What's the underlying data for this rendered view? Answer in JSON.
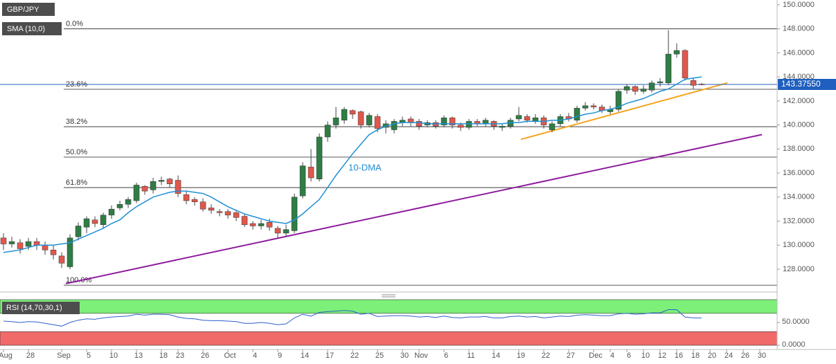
{
  "chart_data": {
    "type": "candlestick",
    "title": "GBP/JPY",
    "categories": [
      "Aug",
      null,
      null,
      "28",
      null,
      null,
      null,
      "Sep",
      null,
      null,
      "5",
      null,
      null,
      "10",
      null,
      null,
      "13",
      null,
      null,
      "18",
      null,
      "23",
      null,
      null,
      "26",
      null,
      null,
      "Oct",
      null,
      null,
      "4",
      null,
      null,
      "9",
      null,
      null,
      "14",
      null,
      null,
      "17",
      null,
      null,
      "22",
      null,
      null,
      "25",
      null,
      null,
      "30",
      null,
      "Nov",
      null,
      null,
      "6",
      null,
      null,
      "11",
      null,
      null,
      "14",
      null,
      null,
      "19",
      null,
      null,
      "22",
      null,
      null,
      "27",
      null,
      null,
      "Dec",
      null,
      "4",
      null,
      "6",
      null,
      "10",
      null,
      "12",
      null,
      "16",
      null,
      "18",
      null,
      "20",
      null,
      "24",
      null,
      "26",
      null,
      "30"
    ],
    "open": [
      130.6,
      130.1,
      130.2,
      129.9,
      130.3,
      130.0,
      129.6,
      129.1,
      128.2,
      130.7,
      131.5,
      132.1,
      131.7,
      132.5,
      133.1,
      133.4,
      133.7,
      134.9,
      134.6,
      135.3,
      135.5,
      135.4,
      134.2,
      133.8,
      133.6,
      133.1,
      132.8,
      132.8,
      132.7,
      132.4,
      131.8,
      131.6,
      131.9,
      131.4,
      131.0,
      131.2,
      134.1,
      136.5,
      135.5,
      139.0,
      140.0,
      140.4,
      141.2,
      141.1,
      140.0,
      140.7,
      139.8,
      139.6,
      140.2,
      140.5,
      140.3,
      140.0,
      140.2,
      140.0,
      140.6,
      140.0,
      139.8,
      140.3,
      140.1,
      140.3,
      139.8,
      139.9,
      140.5,
      140.7,
      140.3,
      140.6,
      139.6,
      140.1,
      140.7,
      140.4,
      141.4,
      141.6,
      141.5,
      141.1,
      141.3,
      142.9,
      143.2,
      142.8,
      142.9,
      143.5,
      143.5,
      145.9,
      146.2,
      143.7,
      143.4,
      null,
      null,
      null,
      null,
      null,
      null,
      null
    ],
    "high": [
      131.0,
      130.7,
      130.5,
      130.6,
      130.6,
      130.3,
      130.0,
      129.4,
      130.9,
      131.9,
      132.4,
      132.4,
      132.7,
      133.3,
      133.7,
      134.0,
      135.2,
      135.0,
      135.6,
      135.7,
      135.6,
      135.8,
      134.5,
      134.0,
      133.9,
      133.4,
      133.0,
      133.0,
      132.9,
      132.6,
      132.0,
      132.1,
      132.2,
      131.6,
      131.7,
      134.3,
      136.9,
      138.0,
      139.3,
      140.3,
      141.5,
      141.5,
      141.3,
      141.2,
      141.0,
      140.9,
      140.4,
      140.5,
      140.7,
      140.7,
      140.5,
      140.4,
      140.4,
      140.8,
      140.7,
      140.2,
      140.5,
      140.5,
      140.6,
      140.4,
      140.1,
      140.6,
      141.5,
      140.9,
      140.9,
      140.8,
      140.3,
      140.9,
      141.0,
      141.6,
      141.9,
      141.8,
      141.7,
      141.6,
      143.0,
      143.4,
      143.3,
      143.3,
      143.7,
      143.9,
      147.9,
      146.8,
      146.3,
      143.9,
      143.5,
      null,
      null,
      null,
      null,
      null,
      null,
      null
    ],
    "low": [
      129.6,
      129.8,
      129.3,
      129.6,
      129.6,
      129.2,
      128.8,
      128.1,
      128.0,
      130.4,
      131.0,
      131.5,
      131.4,
      132.2,
      132.9,
      133.1,
      133.5,
      134.2,
      134.3,
      135.0,
      134.8,
      134.0,
      133.4,
      133.3,
      132.8,
      132.6,
      132.4,
      132.2,
      132.0,
      131.5,
      131.3,
      131.3,
      131.2,
      130.6,
      130.7,
      131.0,
      133.9,
      135.3,
      135.3,
      138.6,
      139.7,
      140.1,
      140.5,
      139.7,
      139.8,
      139.4,
      139.3,
      139.3,
      139.9,
      139.9,
      139.6,
      139.8,
      139.7,
      139.8,
      139.7,
      139.5,
      139.6,
      139.9,
      139.9,
      139.6,
      139.5,
      139.7,
      140.3,
      140.2,
      140.1,
      139.7,
      139.4,
      139.9,
      140.3,
      140.2,
      141.2,
      141.3,
      141.0,
      140.9,
      141.1,
      142.6,
      142.5,
      142.6,
      142.7,
      143.2,
      143.3,
      145.6,
      143.7,
      143.0,
      143.3,
      null,
      null,
      null,
      null,
      null,
      null,
      null
    ],
    "close": [
      130.1,
      130.3,
      129.7,
      130.3,
      130.0,
      129.6,
      129.2,
      128.5,
      130.6,
      131.6,
      132.2,
      131.8,
      132.5,
      133.0,
      133.4,
      133.8,
      135.0,
      134.5,
      135.3,
      135.4,
      135.1,
      134.3,
      133.7,
      133.6,
      133.0,
      132.9,
      132.7,
      132.5,
      132.3,
      131.7,
      131.6,
      131.8,
      131.5,
      131.0,
      131.3,
      134.0,
      136.6,
      135.6,
      139.0,
      140.0,
      140.6,
      141.3,
      140.9,
      140.0,
      140.8,
      139.7,
      140.1,
      140.3,
      140.4,
      140.2,
      139.9,
      140.2,
      139.9,
      140.6,
      140.0,
      139.8,
      140.3,
      140.1,
      140.4,
      139.9,
      139.9,
      140.4,
      140.8,
      140.4,
      140.6,
      140.0,
      140.1,
      140.7,
      140.5,
      141.4,
      141.6,
      141.5,
      141.2,
      141.3,
      142.8,
      143.2,
      142.8,
      143.0,
      143.5,
      143.6,
      145.9,
      146.2,
      143.9,
      143.3,
      143.38,
      null,
      null,
      null,
      null,
      null,
      null,
      null
    ],
    "up_color": "#2f7d45",
    "down_color": "#e0584c",
    "series": [
      {
        "name": "SMA (10,0)",
        "color": "#1e8fd5",
        "values": [
          129.4,
          129.5,
          129.6,
          129.8,
          130.0,
          130.0,
          130.0,
          130.1,
          130.2,
          130.5,
          130.8,
          131.1,
          131.4,
          131.8,
          132.1,
          132.7,
          133.2,
          133.6,
          134.0,
          134.2,
          134.4,
          134.5,
          134.5,
          134.4,
          134.3,
          134.0,
          133.6,
          133.2,
          132.9,
          132.6,
          132.4,
          132.2,
          132.0,
          131.9,
          131.8,
          132.1,
          132.6,
          133.2,
          133.8,
          134.8,
          135.8,
          136.7,
          137.6,
          138.4,
          139.2,
          139.6,
          139.9,
          140.1,
          140.2,
          140.2,
          140.2,
          140.1,
          140.1,
          140.1,
          140.1,
          140.1,
          140.1,
          140.1,
          140.1,
          140.1,
          140.1,
          140.2,
          140.2,
          140.3,
          140.3,
          140.3,
          140.4,
          140.4,
          140.5,
          140.7,
          140.9,
          141.0,
          141.2,
          141.3,
          141.5,
          141.8,
          142.0,
          142.2,
          142.5,
          142.8,
          143.0,
          143.4,
          143.8,
          143.9,
          144.0,
          null,
          null,
          null,
          null,
          null,
          null,
          null
        ]
      }
    ],
    "annotations": [
      {
        "text": "10-DMA"
      }
    ],
    "fib_levels": [
      {
        "label": "0.0%",
        "value": 148.0
      },
      {
        "label": "23.6%",
        "value": 142.97
      },
      {
        "label": "38.2%",
        "value": 139.86
      },
      {
        "label": "50.0%",
        "value": 137.33
      },
      {
        "label": "61.8%",
        "value": 134.79
      },
      {
        "label": "100.0%",
        "value": 126.67
      }
    ],
    "trendlines": [
      {
        "color": "#f5a623",
        "x": [
          62.25,
          87.1
        ],
        "values": [
          138.8,
          143.5
        ]
      },
      {
        "color": "#8e1b9e",
        "x": [
          7.5,
          91.25
        ],
        "values": [
          126.8,
          139.2
        ]
      }
    ],
    "last_price": {
      "value": 143.3755,
      "label": "143.37550",
      "color": "#1f5fbf"
    },
    "xlim": [
      -0.42,
      93.08
    ],
    "ylim": [
      126.1,
      150.4
    ],
    "yticks": [
      {
        "value": 128,
        "label": "128.0000"
      },
      {
        "value": 130,
        "label": "130.0000"
      },
      {
        "value": 132,
        "label": "132.0000"
      },
      {
        "value": 134,
        "label": "134.0000"
      },
      {
        "value": 136,
        "label": "136.0000"
      },
      {
        "value": 138,
        "label": "138.0000"
      },
      {
        "value": 140,
        "label": "140.0000"
      },
      {
        "value": 142,
        "label": "142.0000"
      },
      {
        "value": 144,
        "label": "144.0000"
      },
      {
        "value": 146,
        "label": "146.0000"
      },
      {
        "value": 148,
        "label": "148.0000"
      },
      {
        "value": 150,
        "label": "150.0000"
      }
    ],
    "rsi": {
      "type": "line",
      "name": "RSI (14,70,30,1)",
      "color": "#2b5fc9",
      "values": [
        53,
        52,
        50,
        52,
        51,
        48,
        45,
        42,
        50,
        55,
        58,
        57,
        60,
        62,
        63,
        64,
        68,
        66,
        68,
        68,
        67,
        62,
        59,
        58,
        55,
        54,
        54,
        53,
        52,
        48,
        48,
        50,
        48,
        45,
        47,
        60,
        68,
        64,
        72,
        74,
        75,
        76,
        75,
        68,
        70,
        63,
        64,
        65,
        65,
        64,
        62,
        63,
        61,
        64,
        61,
        60,
        62,
        62,
        63,
        60,
        60,
        63,
        64,
        62,
        63,
        60,
        62,
        64,
        63,
        66,
        67,
        66,
        65,
        65,
        69,
        70,
        68,
        69,
        71,
        71,
        78,
        78,
        62,
        60,
        60,
        null,
        null,
        null,
        null,
        null,
        null,
        null
      ],
      "ylim": [
        0,
        100
      ],
      "yticks": [
        {
          "value": 50,
          "label": "50.0000"
        },
        {
          "value": 0,
          "label": "0.0000"
        }
      ],
      "bands": [
        {
          "from": 70,
          "to": 100,
          "color": "#7df07a"
        },
        {
          "from": 0,
          "to": 30,
          "color": "#f06a6a"
        }
      ]
    }
  }
}
